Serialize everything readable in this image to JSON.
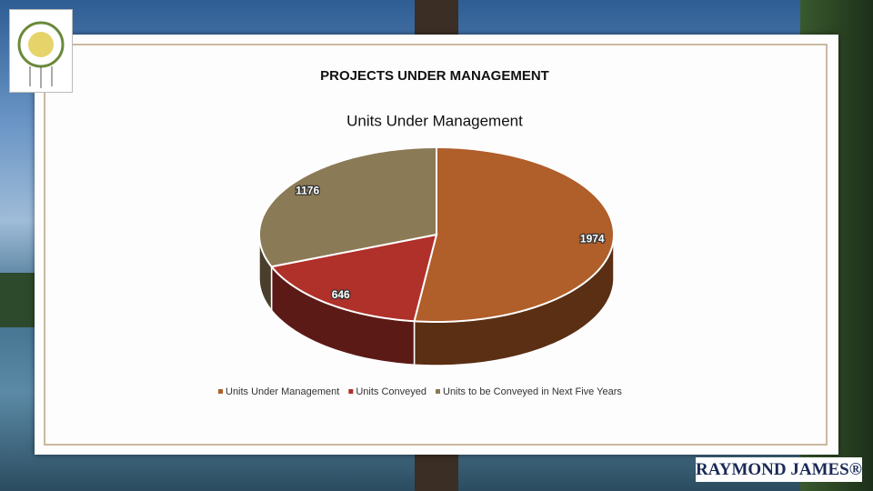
{
  "slide_title": "PROJECTS UNDER MANAGEMENT",
  "brand": "RAYMOND JAMES®",
  "chart_data": {
    "type": "pie3d",
    "title": "Units Under Management",
    "categories": [
      "Units Under Management",
      "Units Conveyed",
      "Units to be Conveyed in Next Five Years"
    ],
    "values": [
      1974,
      646,
      1176
    ],
    "colors": [
      "#b05e2a",
      "#b0302a",
      "#8b7a56"
    ],
    "side_colors": [
      "#5a2f14",
      "#5c1a16",
      "#4a3f2c"
    ],
    "legend": "bottom"
  }
}
